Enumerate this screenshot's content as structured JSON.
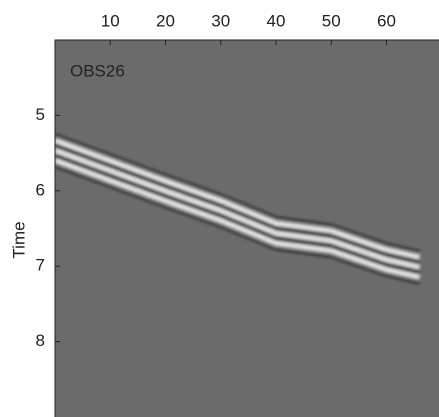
{
  "chart_data": {
    "type": "image",
    "annotation": "OBS26",
    "ylabel": "Time",
    "x": [
      0,
      10,
      20,
      30,
      40,
      50,
      60,
      66
    ],
    "values": [
      5.45,
      5.72,
      5.99,
      6.25,
      6.55,
      6.65,
      6.9,
      7.0
    ],
    "xlim": [
      0,
      69.5
    ],
    "xticks": [
      10,
      20,
      30,
      40,
      50,
      60
    ],
    "ylim": [
      9,
      4
    ],
    "yticks": [
      5,
      6,
      7,
      8
    ],
    "background": "#6b6b6b"
  }
}
